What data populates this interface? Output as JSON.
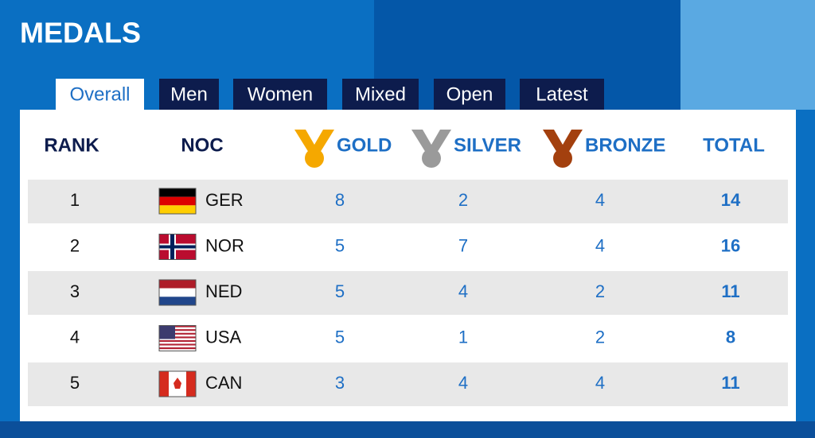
{
  "header": {
    "title": "MEDALS"
  },
  "tabs": [
    "Overall",
    "Men",
    "Women",
    "Mixed",
    "Open",
    "Latest"
  ],
  "table": {
    "columns": [
      "RANK",
      "NOC",
      "GOLD",
      "SILVER",
      "BRONZE",
      "TOTAL"
    ],
    "rows": [
      [
        1,
        "GER",
        8,
        2,
        4,
        14
      ],
      [
        2,
        "NOR",
        5,
        7,
        4,
        16
      ],
      [
        3,
        "NED",
        5,
        4,
        2,
        11
      ],
      [
        4,
        "USA",
        5,
        1,
        2,
        8
      ],
      [
        5,
        "CAN",
        3,
        4,
        4,
        11
      ]
    ]
  }
}
